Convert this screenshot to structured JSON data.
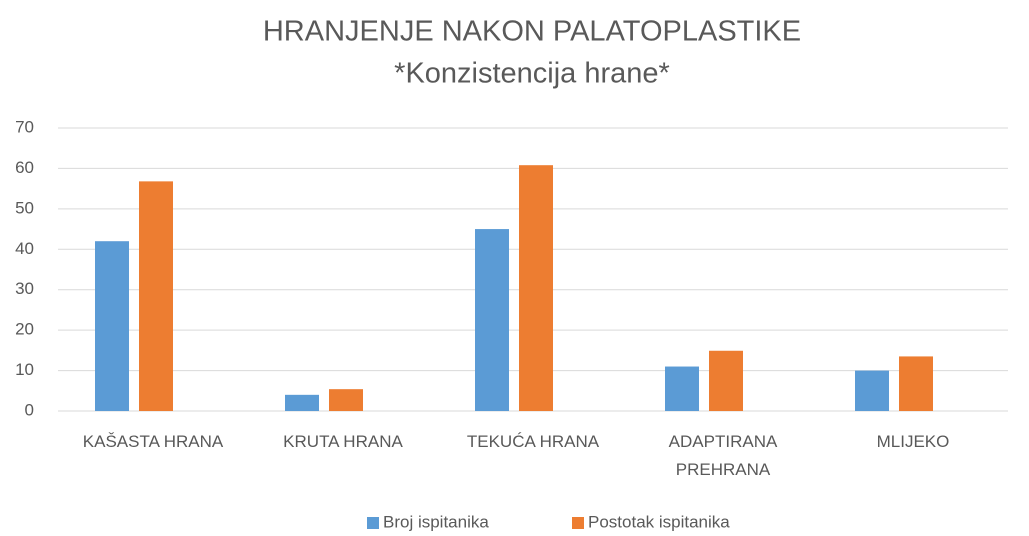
{
  "chart_data": {
    "type": "bar",
    "title": "HRANJENJE NAKON PALATOPLASTIKE",
    "subtitle": "*Konzistencija hrane*",
    "categories": [
      "KAŠASTA HRANA",
      "KRUTA HRANA",
      "TEKUĆA HRANA",
      "ADAPTIRANA PREHRANA",
      "MLIJEKO"
    ],
    "series": [
      {
        "name": "Broj ispitanika",
        "color": "#5b9bd5",
        "values": [
          42,
          4,
          45,
          11,
          10
        ]
      },
      {
        "name": "Postotak ispitanika",
        "color": "#ed7d31",
        "values": [
          56.8,
          5.4,
          60.8,
          14.9,
          13.5
        ]
      }
    ],
    "ylim": [
      0,
      70
    ],
    "yticks": [
      0,
      10,
      20,
      30,
      40,
      50,
      60,
      70
    ],
    "grid": true,
    "legend": "bottom"
  }
}
